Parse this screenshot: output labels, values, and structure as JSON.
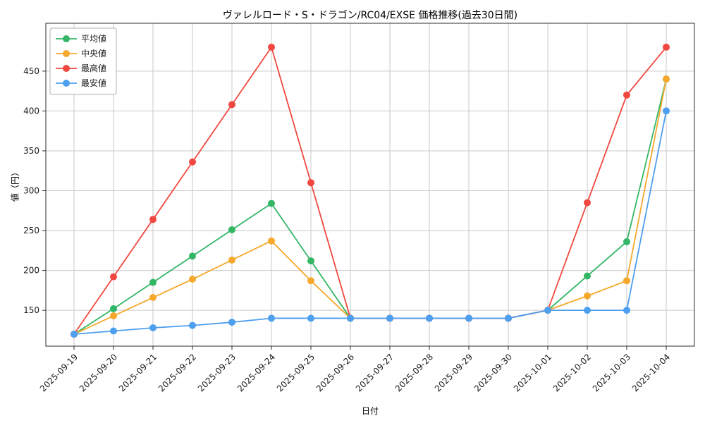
{
  "chart_data": {
    "type": "line",
    "title": "ヴァレルロード・S・ドラゴン/RC04/EXSE 価格推移(過去30日間)",
    "xlabel": "日付",
    "ylabel": "値（円）",
    "x": [
      "2025-09-19",
      "2025-09-20",
      "2025-09-21",
      "2025-09-22",
      "2025-09-23",
      "2025-09-24",
      "2025-09-25",
      "2025-09-26",
      "2025-09-27",
      "2025-09-28",
      "2025-09-29",
      "2025-09-30",
      "2025-10-01",
      "2025-10-02",
      "2025-10-03",
      "2025-10-04"
    ],
    "series": [
      {
        "name": "平均値",
        "color": "#33b766",
        "values": [
          120,
          152,
          185,
          218,
          251,
          284,
          212,
          140,
          140,
          140,
          140,
          140,
          150,
          193,
          236,
          440
        ]
      },
      {
        "name": "中央値",
        "color": "#f5a82c",
        "values": [
          120,
          143,
          166,
          189,
          213,
          237,
          187,
          140,
          140,
          140,
          140,
          140,
          150,
          168,
          187,
          440
        ]
      },
      {
        "name": "最高値",
        "color": "#f04840",
        "values": [
          120,
          192,
          264,
          336,
          408,
          480,
          310,
          140,
          140,
          140,
          140,
          140,
          150,
          285,
          420,
          480
        ]
      },
      {
        "name": "最安値",
        "color": "#4d9ff0",
        "values": [
          120,
          124,
          128,
          131,
          135,
          140,
          140,
          140,
          140,
          140,
          140,
          140,
          150,
          150,
          150,
          400
        ]
      }
    ],
    "ylim": [
      105,
      510
    ],
    "yticks": [
      150,
      200,
      250,
      300,
      350,
      400,
      450
    ],
    "grid": true,
    "legend_position": "upper left",
    "axis_color": "#2b2b2b",
    "grid_color": "#c9c9c9"
  }
}
